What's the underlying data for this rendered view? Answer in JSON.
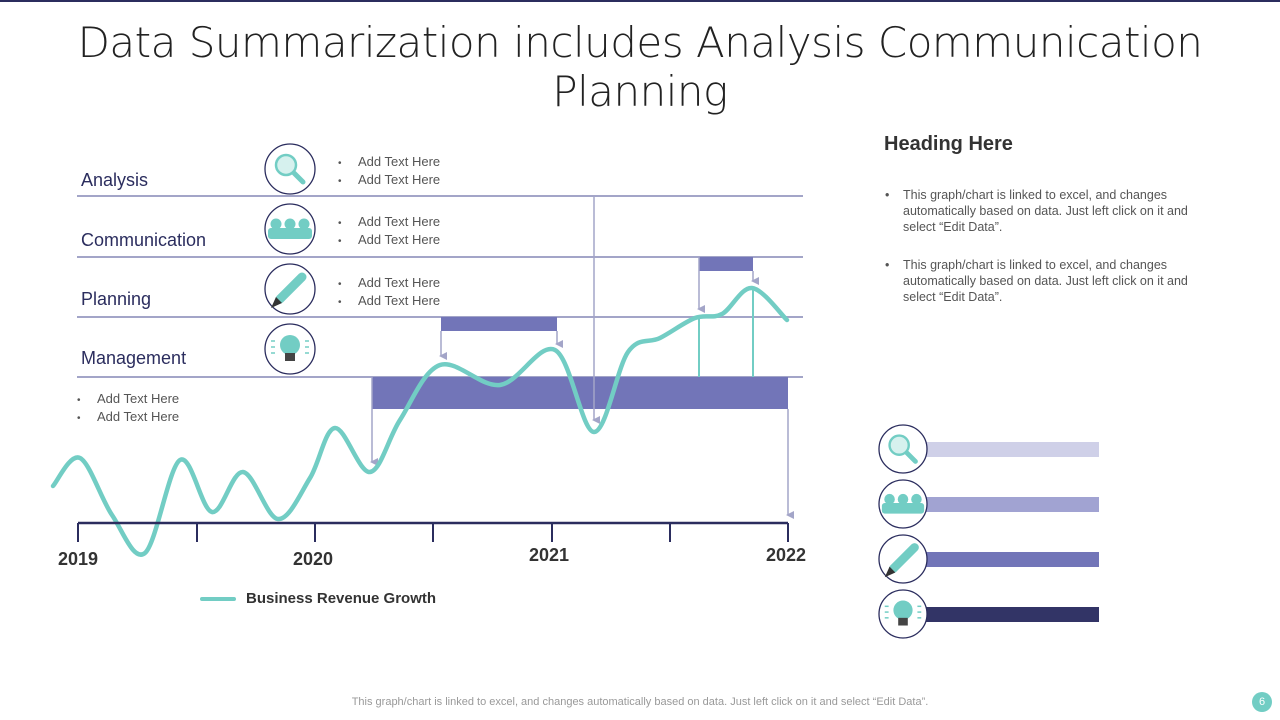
{
  "title": "Data Summarization includes Analysis Communication Planning",
  "categories": [
    {
      "label": "Analysis",
      "icon": "magnifier-icon",
      "bullets": [
        "Add Text Here",
        "Add Text Here"
      ]
    },
    {
      "label": "Communication",
      "icon": "team-icon",
      "bullets": [
        "Add Text Here",
        "Add Text Here"
      ]
    },
    {
      "label": "Planning",
      "icon": "pencil-icon",
      "bullets": [
        "Add Text Here",
        "Add Text Here"
      ]
    },
    {
      "label": "Management",
      "icon": "lightbulb-icon",
      "bullets": [
        "Add Text Here",
        "Add Text Here"
      ]
    }
  ],
  "years": [
    "2019",
    "2020",
    "2021",
    "2022"
  ],
  "legend": "Business Revenue Growth",
  "right": {
    "heading": "Heading Here",
    "paragraphs": [
      "This graph/chart is linked to excel, and changes automatically based on data. Just left click on it and select “Edit Data”.",
      "This graph/chart is linked to excel, and changes automatically based on data. Just left click on it and select “Edit Data”."
    ],
    "bars": [
      {
        "icon": "magnifier-icon",
        "color": "#cfd0e8"
      },
      {
        "icon": "team-icon",
        "color": "#a1a3d2"
      },
      {
        "icon": "pencil-icon",
        "color": "#7275b8"
      },
      {
        "icon": "lightbulb-icon",
        "color": "#323466"
      }
    ]
  },
  "colors": {
    "teal": "#72cdc4",
    "purple": "#7275b8",
    "navy": "#2b2d5e",
    "line": "#a3a5c8"
  },
  "footer": "This graph/chart is linked to excel,  and changes automatically based on data. Just left click on it and select “Edit Data”.",
  "page_number": "6"
}
